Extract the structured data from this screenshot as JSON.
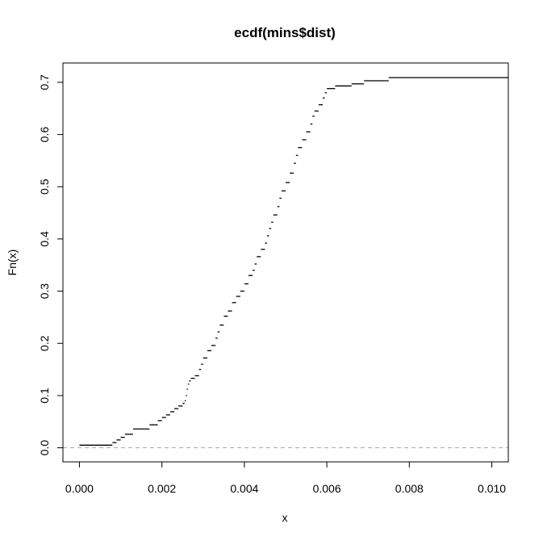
{
  "chart_data": {
    "type": "line",
    "title": "ecdf(mins$dist)",
    "xlabel": "x",
    "ylabel": "Fn(x)",
    "xlim": [
      -0.0004,
      0.0104
    ],
    "ylim": [
      -0.027,
      0.737
    ],
    "x_ticks": [
      0.0,
      0.002,
      0.004,
      0.006,
      0.008,
      0.01
    ],
    "x_tick_labels": [
      "0.000",
      "0.002",
      "0.004",
      "0.006",
      "0.008",
      "0.010"
    ],
    "y_ticks": [
      0.0,
      0.1,
      0.2,
      0.3,
      0.4,
      0.5,
      0.6,
      0.7
    ],
    "y_tick_labels": [
      "0.0",
      "0.1",
      "0.2",
      "0.3",
      "0.4",
      "0.5",
      "0.6",
      "0.7"
    ],
    "reference_line": {
      "y": 0.0,
      "style": "dashed",
      "color": "#aaaaaa"
    },
    "series": [
      {
        "style": "step",
        "color": "#000000",
        "points": [
          [
            0.0,
            0.005
          ],
          [
            0.0008,
            0.01
          ],
          [
            0.0009,
            0.015
          ],
          [
            0.001,
            0.02
          ],
          [
            0.0011,
            0.026
          ],
          [
            0.0013,
            0.036
          ],
          [
            0.0017,
            0.044
          ],
          [
            0.0019,
            0.052
          ],
          [
            0.002,
            0.058
          ],
          [
            0.0021,
            0.063
          ],
          [
            0.0022,
            0.069
          ],
          [
            0.0023,
            0.075
          ],
          [
            0.0024,
            0.08
          ],
          [
            0.0025,
            0.085
          ],
          [
            0.00255,
            0.09
          ],
          [
            0.00258,
            0.1
          ],
          [
            0.0026,
            0.112
          ],
          [
            0.00263,
            0.122
          ],
          [
            0.00266,
            0.128
          ],
          [
            0.0027,
            0.133
          ],
          [
            0.0028,
            0.138
          ],
          [
            0.0029,
            0.15
          ],
          [
            0.00295,
            0.16
          ],
          [
            0.003,
            0.172
          ],
          [
            0.0031,
            0.186
          ],
          [
            0.0032,
            0.196
          ],
          [
            0.0033,
            0.21
          ],
          [
            0.00335,
            0.222
          ],
          [
            0.0034,
            0.235
          ],
          [
            0.0035,
            0.252
          ],
          [
            0.0036,
            0.262
          ],
          [
            0.0037,
            0.278
          ],
          [
            0.0038,
            0.29
          ],
          [
            0.0039,
            0.3
          ],
          [
            0.004,
            0.314
          ],
          [
            0.0041,
            0.33
          ],
          [
            0.0042,
            0.34
          ],
          [
            0.00425,
            0.352
          ],
          [
            0.0043,
            0.366
          ],
          [
            0.0044,
            0.38
          ],
          [
            0.0045,
            0.392
          ],
          [
            0.00455,
            0.406
          ],
          [
            0.0046,
            0.42
          ],
          [
            0.00465,
            0.432
          ],
          [
            0.0047,
            0.446
          ],
          [
            0.0048,
            0.462
          ],
          [
            0.00485,
            0.478
          ],
          [
            0.0049,
            0.492
          ],
          [
            0.005,
            0.508
          ],
          [
            0.0051,
            0.526
          ],
          [
            0.0052,
            0.545
          ],
          [
            0.00525,
            0.56
          ],
          [
            0.0053,
            0.575
          ],
          [
            0.0054,
            0.59
          ],
          [
            0.0055,
            0.605
          ],
          [
            0.0056,
            0.62
          ],
          [
            0.00565,
            0.635
          ],
          [
            0.0057,
            0.645
          ],
          [
            0.0058,
            0.657
          ],
          [
            0.0059,
            0.67
          ],
          [
            0.00595,
            0.68
          ],
          [
            0.006,
            0.688
          ],
          [
            0.0062,
            0.693
          ],
          [
            0.0066,
            0.697
          ],
          [
            0.0069,
            0.703
          ],
          [
            0.0075,
            0.709
          ],
          [
            0.0104,
            0.709
          ]
        ]
      }
    ]
  }
}
